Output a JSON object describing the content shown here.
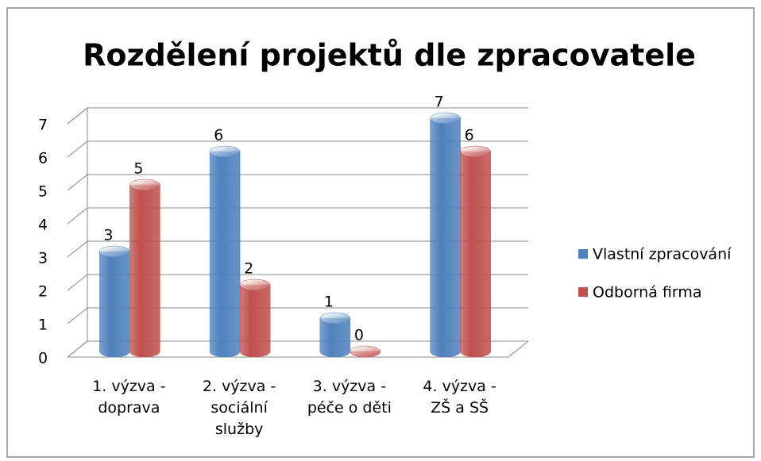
{
  "chart_data": {
    "type": "bar3d",
    "title": "Rozdělení projektů dle zpracovatele",
    "categories": [
      "1. výzva - doprava",
      "2. výzva - sociální služby",
      "3. výzva - péče o děti",
      "4. výzva - ZŠ a SŠ"
    ],
    "series": [
      {
        "name": "Vlastní zpracování",
        "color": "#4f81bd",
        "values": [
          3,
          6,
          1,
          7
        ]
      },
      {
        "name": "Odborná firma",
        "color": "#c0504d",
        "values": [
          5,
          2,
          0,
          6
        ]
      }
    ],
    "ylim": [
      0,
      7
    ],
    "yticks": [
      0,
      1,
      2,
      3,
      4,
      5,
      6,
      7
    ],
    "grid": true,
    "legend": "right"
  }
}
